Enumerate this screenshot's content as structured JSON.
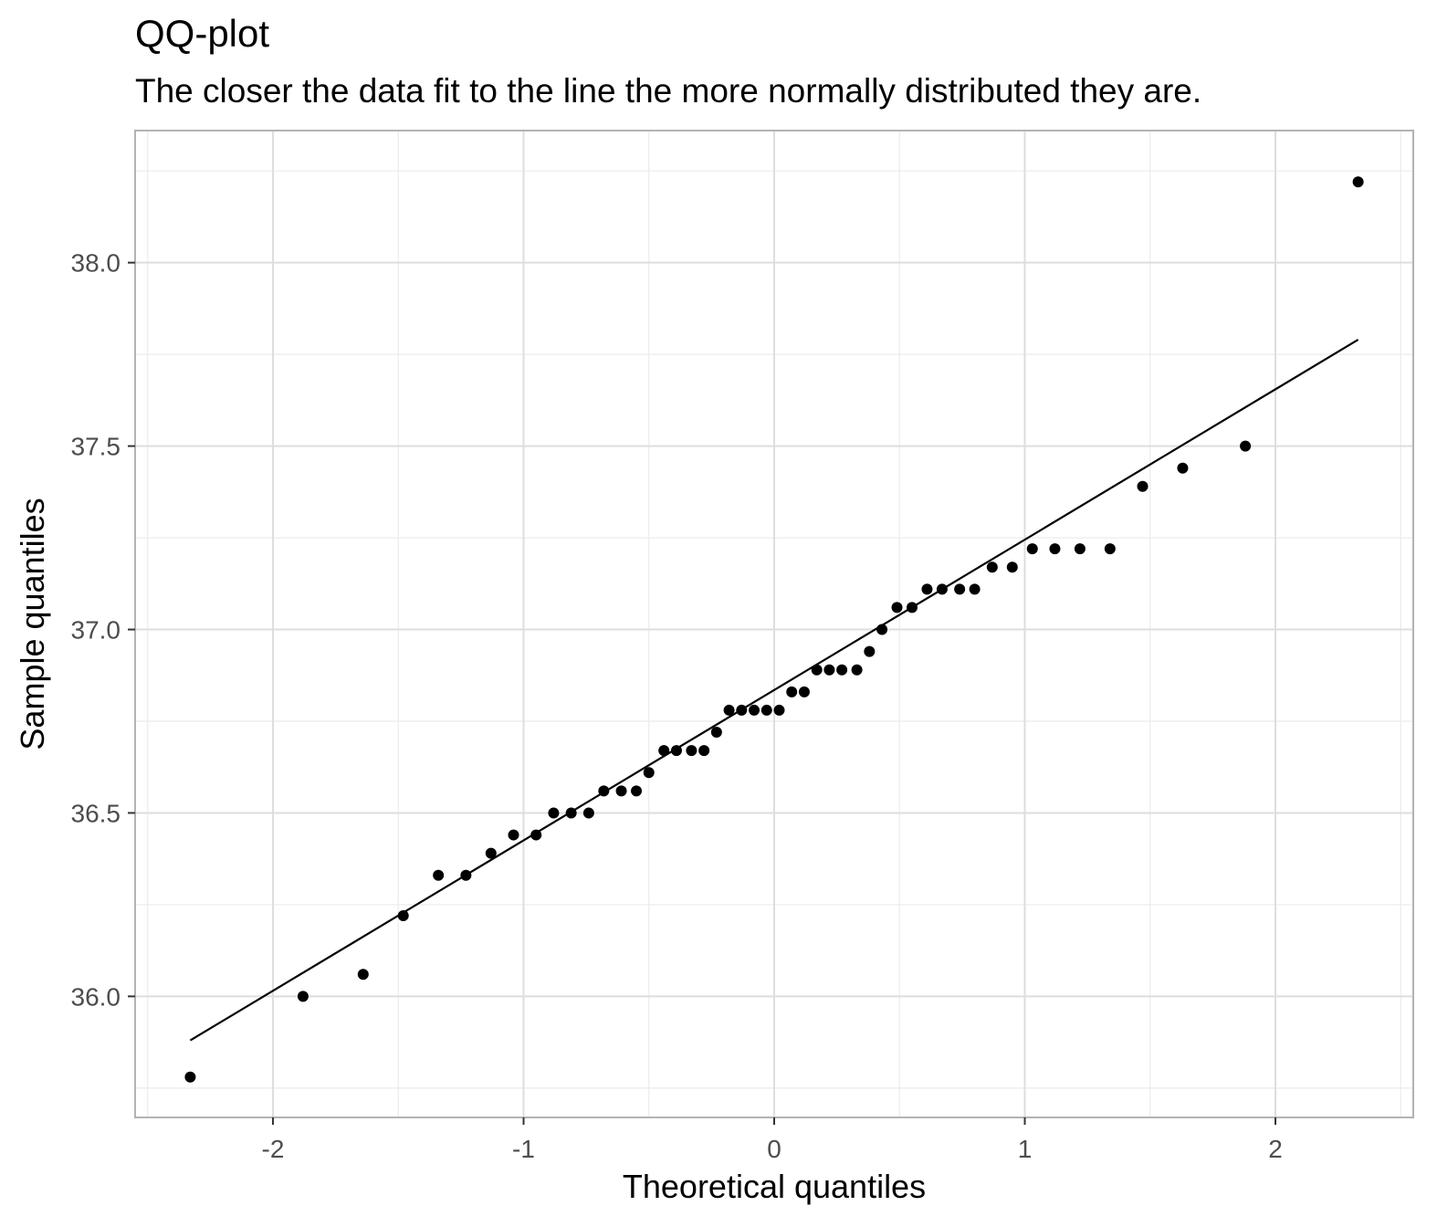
{
  "chart_data": {
    "type": "scatter",
    "title": "QQ-plot",
    "subtitle": "The closer the data fit to the line the more normally distributed they are.",
    "xlabel": "Theoretical quantiles",
    "ylabel": "Sample quantiles",
    "xlim": [
      -2.55,
      2.55
    ],
    "ylim": [
      35.67,
      38.36
    ],
    "x_ticks": [
      -2,
      -1,
      0,
      1,
      2
    ],
    "x_tick_labels": [
      "-2",
      "-1",
      "0",
      "1",
      "2"
    ],
    "y_ticks": [
      36.0,
      36.5,
      37.0,
      37.5,
      38.0
    ],
    "y_tick_labels": [
      "36.0",
      "36.5",
      "37.0",
      "37.5",
      "38.0"
    ],
    "grid": true,
    "series": [
      {
        "type": "scatter",
        "color": "#000000",
        "points": [
          [
            -2.33,
            35.78
          ],
          [
            -1.88,
            36.0
          ],
          [
            -1.64,
            36.06
          ],
          [
            -1.48,
            36.22
          ],
          [
            -1.34,
            36.33
          ],
          [
            -1.23,
            36.33
          ],
          [
            -1.13,
            36.39
          ],
          [
            -1.04,
            36.44
          ],
          [
            -0.95,
            36.44
          ],
          [
            -0.88,
            36.5
          ],
          [
            -0.81,
            36.5
          ],
          [
            -0.74,
            36.5
          ],
          [
            -0.68,
            36.56
          ],
          [
            -0.61,
            36.56
          ],
          [
            -0.55,
            36.56
          ],
          [
            -0.5,
            36.61
          ],
          [
            -0.44,
            36.67
          ],
          [
            -0.39,
            36.67
          ],
          [
            -0.33,
            36.67
          ],
          [
            -0.28,
            36.67
          ],
          [
            -0.23,
            36.72
          ],
          [
            -0.18,
            36.78
          ],
          [
            -0.13,
            36.78
          ],
          [
            -0.08,
            36.78
          ],
          [
            -0.03,
            36.78
          ],
          [
            0.02,
            36.78
          ],
          [
            0.07,
            36.83
          ],
          [
            0.12,
            36.83
          ],
          [
            0.17,
            36.89
          ],
          [
            0.22,
            36.89
          ],
          [
            0.27,
            36.89
          ],
          [
            0.33,
            36.89
          ],
          [
            0.38,
            36.94
          ],
          [
            0.43,
            37.0
          ],
          [
            0.49,
            37.06
          ],
          [
            0.55,
            37.06
          ],
          [
            0.61,
            37.11
          ],
          [
            0.67,
            37.11
          ],
          [
            0.74,
            37.11
          ],
          [
            0.8,
            37.11
          ],
          [
            0.87,
            37.17
          ],
          [
            0.95,
            37.17
          ],
          [
            1.03,
            37.22
          ],
          [
            1.12,
            37.22
          ],
          [
            1.22,
            37.22
          ],
          [
            1.34,
            37.22
          ],
          [
            1.47,
            37.39
          ],
          [
            1.63,
            37.44
          ],
          [
            1.88,
            37.5
          ],
          [
            2.33,
            38.22
          ]
        ]
      },
      {
        "type": "line",
        "color": "#000000",
        "points": [
          [
            -2.33,
            35.88
          ],
          [
            2.33,
            37.79
          ]
        ]
      }
    ]
  }
}
